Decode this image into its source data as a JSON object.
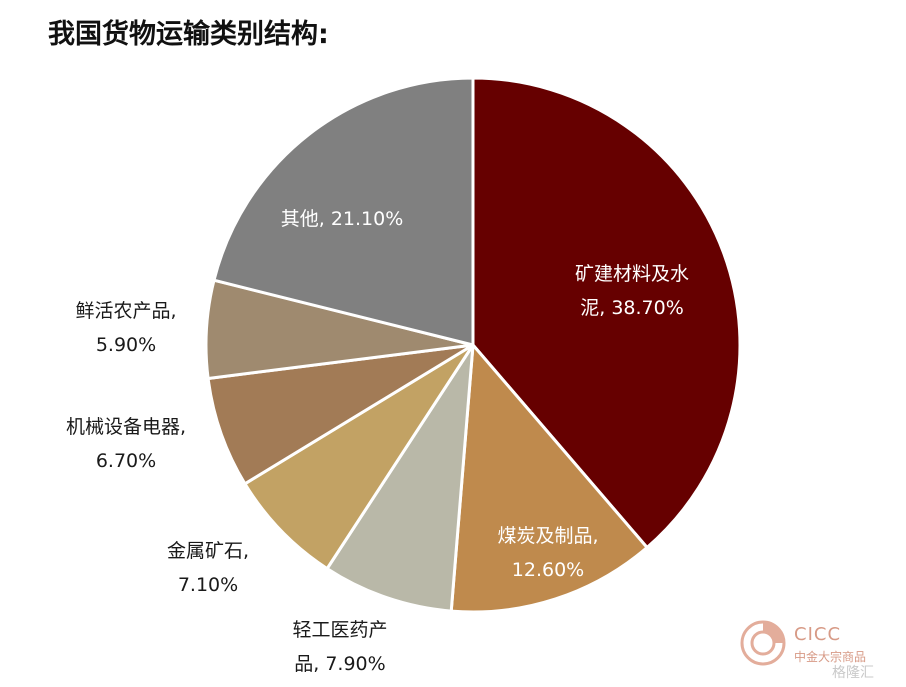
{
  "page": {
    "title": "我国货物运输类别结构:"
  },
  "watermark": {
    "brand": "CICC",
    "subtitle": "中金大宗商品",
    "site": "格隆汇"
  },
  "chart_data": {
    "type": "pie",
    "start": "12 o'clock",
    "direction": "clockwise",
    "slices": [
      {
        "label": "矿建材料及水泥",
        "label_lines": [
          "矿建材料及水",
          "泥, 38.70%"
        ],
        "value": 38.7,
        "color": "#660000",
        "label_placement": "inside"
      },
      {
        "label": "煤炭及制品",
        "label_lines": [
          "煤炭及制品,",
          "12.60%"
        ],
        "value": 12.6,
        "color": "#bf8a4d",
        "label_placement": "inside"
      },
      {
        "label": "轻工医药产品",
        "label_lines": [
          "轻工医药产",
          "品, 7.90%"
        ],
        "value": 7.9,
        "color": "#b9b8a8",
        "label_placement": "outside"
      },
      {
        "label": "金属矿石",
        "label_lines": [
          "金属矿石,",
          "7.10%"
        ],
        "value": 7.1,
        "color": "#c2a264",
        "label_placement": "outside"
      },
      {
        "label": "机械设备电器",
        "label_lines": [
          "机械设备电器,",
          "6.70%"
        ],
        "value": 6.7,
        "color": "#a27b56",
        "label_placement": "outside"
      },
      {
        "label": "鲜活农产品",
        "label_lines": [
          "鲜活农产品,",
          "5.90%"
        ],
        "value": 5.9,
        "color": "#9f8a6f",
        "label_placement": "outside"
      },
      {
        "label": "其他",
        "label_lines": [
          "其他, 21.10%"
        ],
        "value": 21.1,
        "color": "#808080",
        "label_placement": "inside"
      }
    ]
  }
}
